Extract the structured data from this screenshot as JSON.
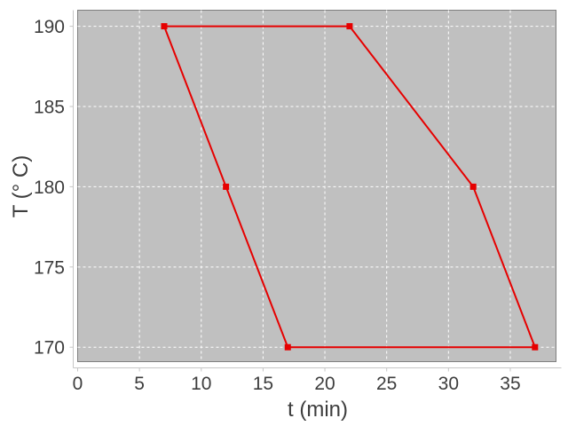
{
  "chart_data": {
    "type": "line",
    "xlabel": "t (min)",
    "ylabel": "T (° C)",
    "xlim": [
      0,
      38.7
    ],
    "ylim": [
      169.1,
      191.0
    ],
    "x_ticks": [
      0,
      5,
      10,
      15,
      20,
      25,
      30,
      35
    ],
    "y_ticks": [
      170,
      175,
      180,
      185,
      190
    ],
    "grid": "white-dashed-both-axes",
    "legend": "none",
    "series": [
      {
        "color": "#e60000",
        "marker": "filled-square",
        "marker_size": 7,
        "line_width": 2,
        "closed": true,
        "points": [
          [
            7,
            190
          ],
          [
            22,
            190
          ],
          [
            32,
            180
          ],
          [
            37,
            170
          ],
          [
            17,
            170
          ],
          [
            12,
            180
          ]
        ]
      }
    ]
  },
  "style": {
    "background": "#ffffff",
    "plot_background": "#c0c0c0",
    "plot_border": "#808080",
    "grid_color": "#ffffff",
    "axis_line_color": "#c6c6c6",
    "text_color": "#3d3d3d",
    "series_color": "#e60000"
  }
}
